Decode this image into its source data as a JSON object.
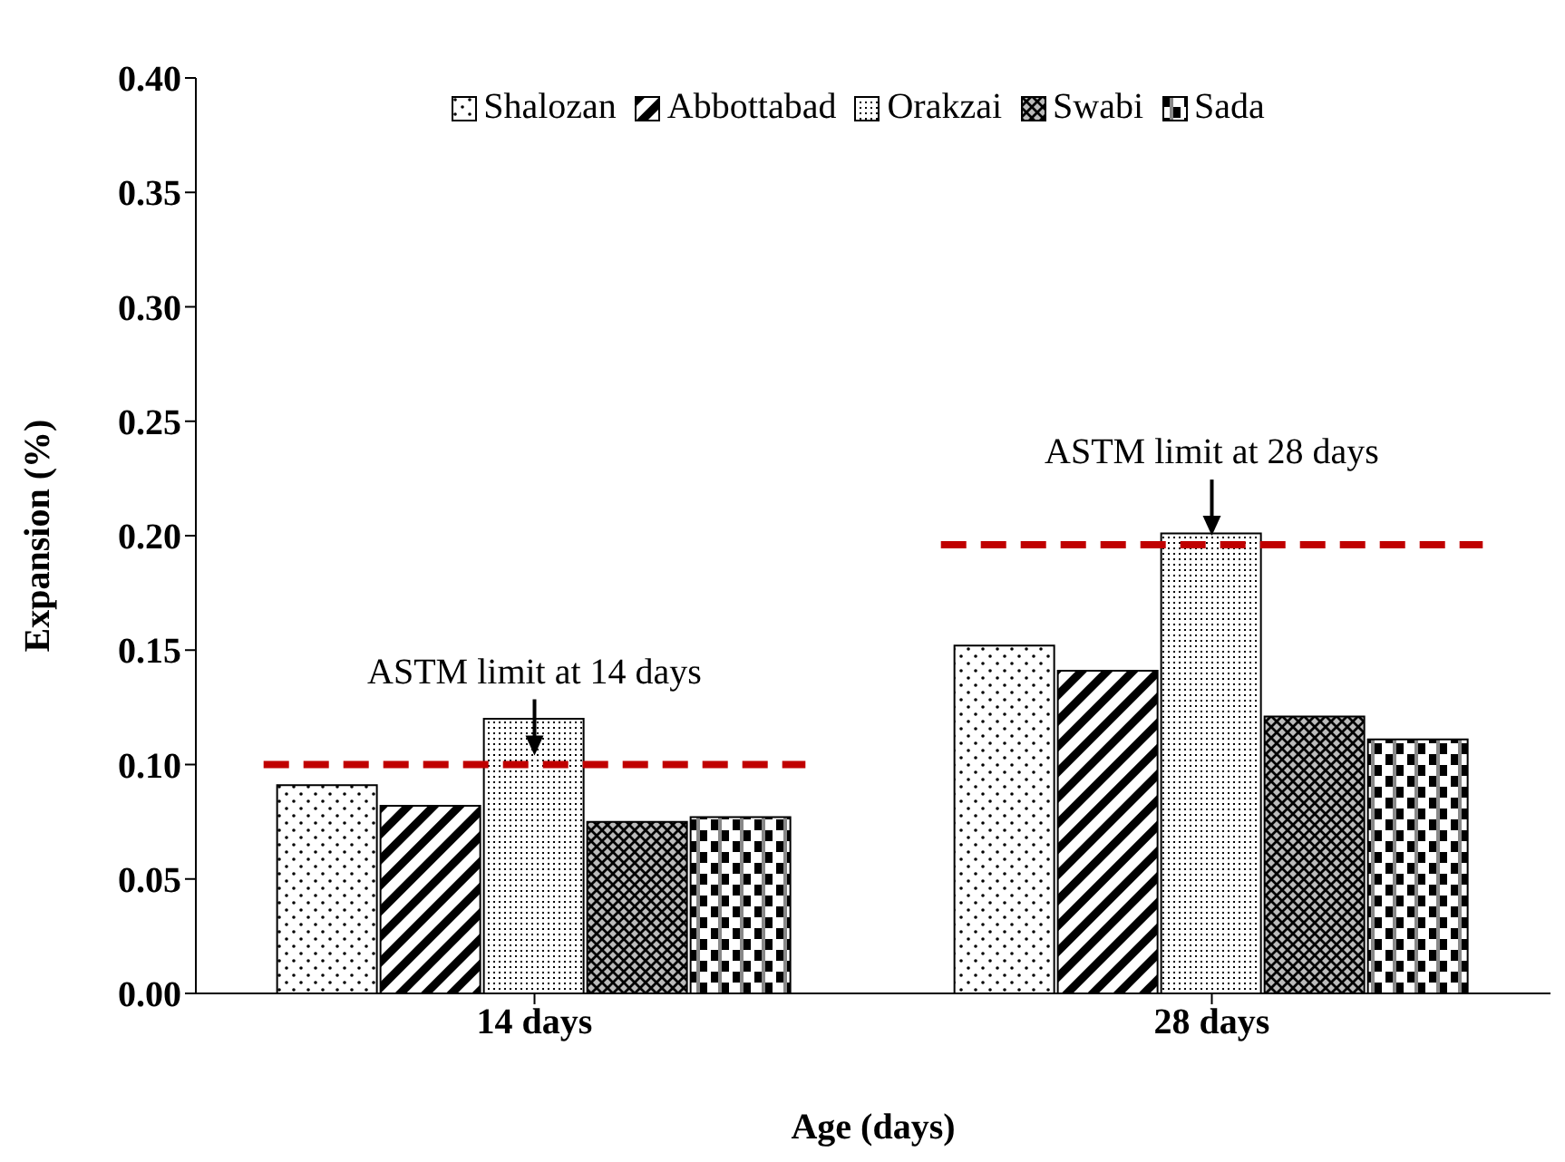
{
  "chart_data": {
    "type": "bar",
    "xlabel": "Age (days)",
    "ylabel": "Expansion (%)",
    "categories": [
      "14 days",
      "28 days"
    ],
    "series": [
      {
        "name": "Shalozan",
        "color": "#000000",
        "values": [
          0.091,
          0.152
        ]
      },
      {
        "name": "Abbottabad",
        "color": "#000000",
        "values": [
          0.082,
          0.141
        ]
      },
      {
        "name": "Orakzai",
        "color": "#000000",
        "values": [
          0.12,
          0.201
        ]
      },
      {
        "name": "Swabi",
        "color": "#000000",
        "values": [
          0.075,
          0.121
        ]
      },
      {
        "name": "Sada",
        "color": "#000000",
        "values": [
          0.077,
          0.111
        ]
      }
    ],
    "ylim": [
      0,
      0.4
    ],
    "yticks": [
      {
        "value": 0,
        "label": "0.00"
      },
      {
        "value": 0.05,
        "label": "0.05"
      },
      {
        "value": 0.1,
        "label": "0.10"
      },
      {
        "value": 0.15,
        "label": "0.15"
      },
      {
        "value": 0.2,
        "label": "0.20"
      },
      {
        "value": 0.25,
        "label": "0.25"
      },
      {
        "value": 0.3,
        "label": "0.30"
      },
      {
        "value": 0.35,
        "label": "0.35"
      },
      {
        "value": 0.4,
        "label": "0.40"
      }
    ],
    "legend": "top",
    "ref_lines": [
      {
        "axis": "y",
        "value": 0.1,
        "label": "ASTM limit at 14 days",
        "color": "#c00000",
        "line_style": "dashed"
      },
      {
        "axis": "y",
        "value": 0.196,
        "label": "ASTM limit at 28 days",
        "color": "#c00000",
        "line_style": "dashed"
      }
    ]
  }
}
